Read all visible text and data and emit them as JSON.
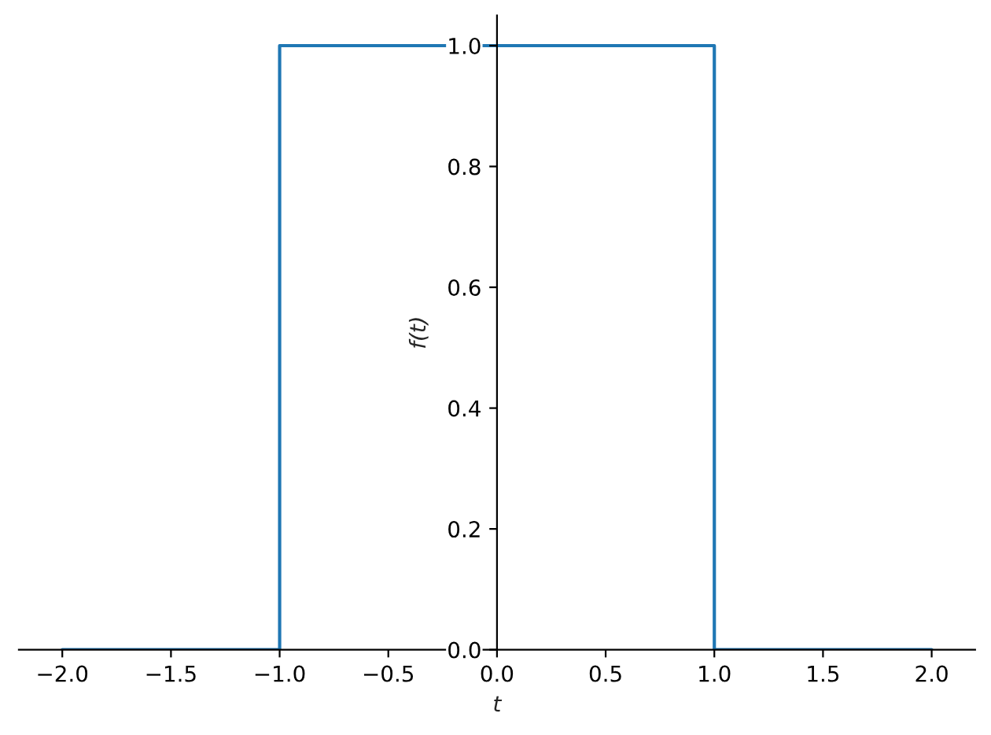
{
  "chart_data": {
    "type": "line",
    "xlabel": "t",
    "ylabel": "f(t)",
    "x": [
      -2,
      -1,
      -1,
      1,
      1,
      2
    ],
    "series": [
      {
        "color": "#1f77b4",
        "values": [
          0,
          0,
          1,
          1,
          0,
          0
        ]
      }
    ],
    "xlim": [
      -2.2,
      2.2
    ],
    "ylim": [
      0,
      1.05
    ],
    "xticks": [
      {
        "value": -2,
        "label": "−2.0"
      },
      {
        "value": -1.5,
        "label": "−1.5"
      },
      {
        "value": -1,
        "label": "−1.0"
      },
      {
        "value": -0.5,
        "label": "−0.5"
      },
      {
        "value": 0,
        "label": "0.0"
      },
      {
        "value": 0.5,
        "label": "0.5"
      },
      {
        "value": 1,
        "label": "1.0"
      },
      {
        "value": 1.5,
        "label": "1.5"
      },
      {
        "value": 2,
        "label": "2.0"
      }
    ],
    "yticks": [
      {
        "value": 0,
        "label": "0.0"
      },
      {
        "value": 0.2,
        "label": "0.2"
      },
      {
        "value": 0.4,
        "label": "0.4"
      },
      {
        "value": 0.6,
        "label": "0.6"
      },
      {
        "value": 0.8,
        "label": "0.8"
      },
      {
        "value": 1,
        "label": "1.0"
      }
    ],
    "grid": false,
    "legend": false
  }
}
